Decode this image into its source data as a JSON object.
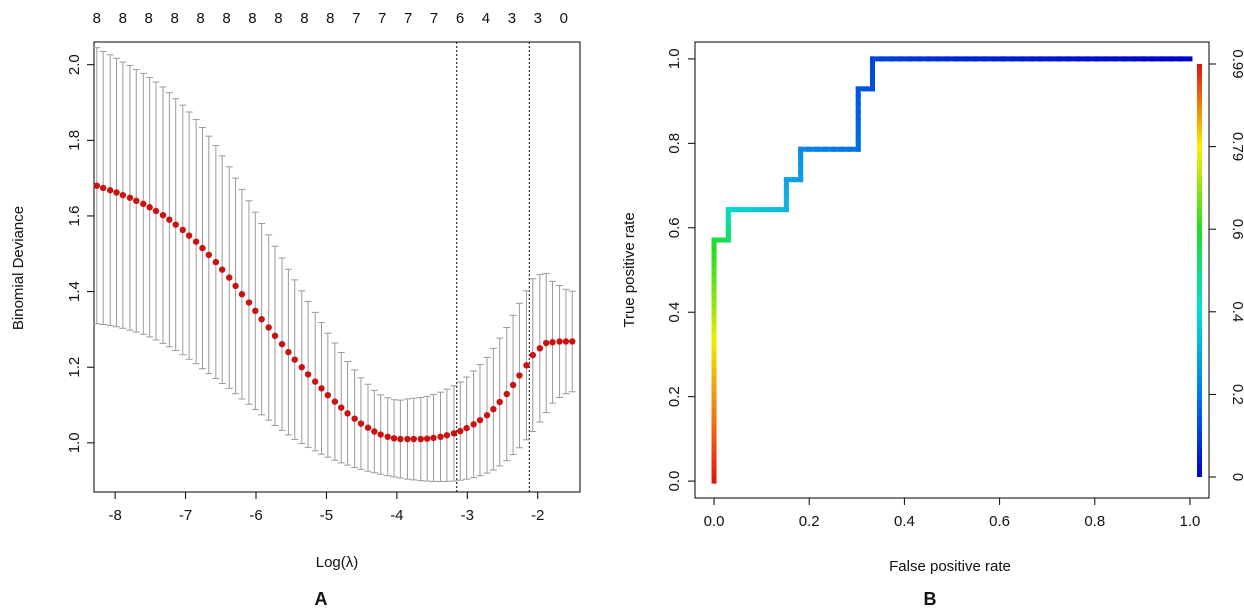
{
  "chart_data": [
    {
      "panel_label": "A",
      "type": "scatter",
      "xlabel": "Log(λ)",
      "ylabel": "Binomial Deviance",
      "xlim": [
        -8.3,
        -1.4
      ],
      "ylim": [
        0.87,
        2.06
      ],
      "x_ticks": [
        -8,
        -7,
        -6,
        -5,
        -4,
        -3,
        -2
      ],
      "y_ticks": [
        1.0,
        1.2,
        1.4,
        1.6,
        1.8,
        2.0
      ],
      "top_axis_labels": [
        "8",
        "8",
        "8",
        "8",
        "8",
        "8",
        "8",
        "8",
        "8",
        "8",
        "7",
        "7",
        "7",
        "7",
        "6",
        "4",
        "3",
        "3",
        "0"
      ],
      "vlines": [
        -3.15,
        -2.12
      ],
      "series": [
        {
          "x": [
            -8.26,
            -8.17,
            -8.07,
            -7.98,
            -7.89,
            -7.79,
            -7.7,
            -7.6,
            -7.51,
            -7.42,
            -7.32,
            -7.23,
            -7.14,
            -7.04,
            -6.95,
            -6.85,
            -6.76,
            -6.67,
            -6.57,
            -6.48,
            -6.38,
            -6.29,
            -6.2,
            -6.1,
            -6.01,
            -5.92,
            -5.82,
            -5.73,
            -5.63,
            -5.54,
            -5.45,
            -5.35,
            -5.26,
            -5.16,
            -5.07,
            -4.98,
            -4.88,
            -4.79,
            -4.7,
            -4.6,
            -4.51,
            -4.41,
            -4.32,
            -4.23,
            -4.13,
            -4.04,
            -3.95,
            -3.85,
            -3.76,
            -3.66,
            -3.57,
            -3.48,
            -3.38,
            -3.29,
            -3.19,
            -3.1,
            -3.01,
            -2.91,
            -2.82,
            -2.72,
            -2.63,
            -2.54,
            -2.44,
            -2.35,
            -2.26,
            -2.16,
            -2.07,
            -1.97,
            -1.88,
            -1.79,
            -1.69,
            -1.6,
            -1.51
          ],
          "y": [
            1.68,
            1.674,
            1.668,
            1.662,
            1.655,
            1.648,
            1.64,
            1.632,
            1.623,
            1.613,
            1.602,
            1.59,
            1.577,
            1.563,
            1.548,
            1.532,
            1.515,
            1.497,
            1.478,
            1.458,
            1.437,
            1.415,
            1.393,
            1.371,
            1.349,
            1.327,
            1.305,
            1.283,
            1.261,
            1.24,
            1.22,
            1.2,
            1.181,
            1.162,
            1.144,
            1.126,
            1.109,
            1.093,
            1.078,
            1.064,
            1.051,
            1.04,
            1.03,
            1.022,
            1.016,
            1.012,
            1.01,
            1.01,
            1.01,
            1.01,
            1.011,
            1.013,
            1.016,
            1.02,
            1.025,
            1.031,
            1.039,
            1.049,
            1.06,
            1.073,
            1.089,
            1.108,
            1.129,
            1.153,
            1.178,
            1.205,
            1.232,
            1.25,
            1.264,
            1.266,
            1.268,
            1.268,
            1.268
          ],
          "lower": [
            1.315,
            1.313,
            1.31,
            1.307,
            1.303,
            1.298,
            1.293,
            1.287,
            1.28,
            1.272,
            1.263,
            1.254,
            1.244,
            1.233,
            1.221,
            1.209,
            1.196,
            1.183,
            1.17,
            1.157,
            1.144,
            1.13,
            1.116,
            1.102,
            1.088,
            1.074,
            1.06,
            1.046,
            1.033,
            1.021,
            1.009,
            0.998,
            0.988,
            0.979,
            0.97,
            0.962,
            0.954,
            0.947,
            0.941,
            0.935,
            0.93,
            0.925,
            0.921,
            0.917,
            0.913,
            0.91,
            0.907,
            0.904,
            0.902,
            0.9,
            0.899,
            0.898,
            0.898,
            0.898,
            0.899,
            0.901,
            0.904,
            0.908,
            0.913,
            0.92,
            0.928,
            0.939,
            0.953,
            0.969,
            0.987,
            1.008,
            1.03,
            1.055,
            1.08,
            1.105,
            1.12,
            1.13,
            1.135
          ],
          "upper": [
            2.045,
            2.035,
            2.026,
            2.017,
            2.007,
            1.998,
            1.987,
            1.977,
            1.966,
            1.954,
            1.941,
            1.926,
            1.91,
            1.893,
            1.875,
            1.855,
            1.834,
            1.811,
            1.786,
            1.759,
            1.73,
            1.7,
            1.67,
            1.64,
            1.61,
            1.58,
            1.55,
            1.52,
            1.489,
            1.459,
            1.431,
            1.402,
            1.374,
            1.345,
            1.318,
            1.29,
            1.264,
            1.239,
            1.215,
            1.193,
            1.172,
            1.155,
            1.139,
            1.127,
            1.119,
            1.114,
            1.113,
            1.116,
            1.118,
            1.12,
            1.123,
            1.128,
            1.134,
            1.142,
            1.151,
            1.161,
            1.174,
            1.19,
            1.207,
            1.226,
            1.25,
            1.277,
            1.305,
            1.337,
            1.369,
            1.402,
            1.434,
            1.445,
            1.448,
            1.427,
            1.416,
            1.406,
            1.401
          ]
        }
      ],
      "colors": {
        "points": "#cc1111",
        "error_bars": "#9a9a9a"
      }
    },
    {
      "panel_label": "B",
      "type": "line",
      "xlabel": "False positive rate",
      "ylabel": "True positive rate",
      "xlim": [
        -0.04,
        1.04
      ],
      "ylim": [
        -0.04,
        1.04
      ],
      "x_ticks": [
        0.0,
        0.2,
        0.4,
        0.6,
        0.8,
        1.0
      ],
      "y_ticks": [
        0.0,
        0.2,
        0.4,
        0.6,
        0.8,
        1.0
      ],
      "colorbar_ticks": [
        "0",
        "0.2",
        "0.4",
        "0.6",
        "0.79",
        "0.99"
      ],
      "series": [
        {
          "points": [
            [
              0.0,
              0.0
            ],
            [
              0.0,
              0.571
            ],
            [
              0.03,
              0.571
            ],
            [
              0.03,
              0.643
            ],
            [
              0.152,
              0.643
            ],
            [
              0.152,
              0.714
            ],
            [
              0.182,
              0.714
            ],
            [
              0.182,
              0.786
            ],
            [
              0.303,
              0.786
            ],
            [
              0.303,
              0.929
            ],
            [
              0.333,
              0.929
            ],
            [
              0.333,
              1.0
            ],
            [
              1.0,
              1.0
            ]
          ],
          "colorization": "cutoff (rainbow)"
        }
      ]
    }
  ]
}
